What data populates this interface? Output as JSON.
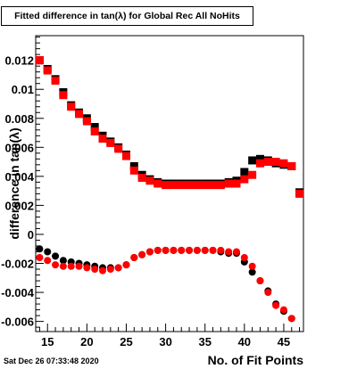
{
  "header": {
    "title": "Fitted difference in tan(λ) for Global Rec All NoHits"
  },
  "footer": {
    "timestamp": "Sat Dec 26 07:33:48 2020",
    "xlabel": "No. of Fit Points"
  },
  "chart_data": {
    "type": "scatter",
    "title": "Fitted difference in tan(λ) for Global Rec All NoHits",
    "xlabel": "No. of Fit Points",
    "ylabel": "difference in tan(λ)",
    "xlim": [
      13.5,
      47.5
    ],
    "ylim": [
      -0.0067,
      0.0137
    ],
    "x_ticks": [
      15,
      20,
      25,
      30,
      35,
      40,
      45
    ],
    "x_tick_labels": [
      "15",
      "20",
      "25",
      "30",
      "35",
      "40",
      "45"
    ],
    "y_ticks": [
      -0.006,
      -0.004,
      -0.002,
      0,
      0.002,
      0.004,
      0.006,
      0.008,
      0.01,
      0.012
    ],
    "y_tick_labels": [
      "-0.006",
      "-0.004",
      "-0.002",
      "0",
      "0.002",
      "0.004",
      "0.006",
      "0.008",
      "0.01",
      "0.012"
    ],
    "series": [
      {
        "color": "#000000",
        "marker": "square",
        "x": [
          14,
          15,
          16,
          17,
          18,
          19,
          20,
          21,
          22,
          23,
          24,
          25,
          26,
          27,
          28,
          29,
          30,
          31,
          32,
          33,
          34,
          35,
          36,
          37,
          38,
          39,
          40,
          41,
          42,
          43,
          44,
          45,
          46,
          47
        ],
        "y": [
          0.012,
          0.0114,
          0.0107,
          0.0098,
          0.0089,
          0.0084,
          0.008,
          0.0074,
          0.0068,
          0.0064,
          0.006,
          0.0055,
          0.0047,
          0.0041,
          0.0038,
          0.0036,
          0.0035,
          0.0035,
          0.0035,
          0.0035,
          0.0035,
          0.0035,
          0.0035,
          0.0035,
          0.0036,
          0.0037,
          0.0043,
          0.0051,
          0.0052,
          0.0051,
          0.0049,
          0.0048,
          0.0047,
          0.0029
        ]
      },
      {
        "color": "#ff0000",
        "marker": "square",
        "x": [
          14,
          15,
          16,
          17,
          18,
          19,
          20,
          21,
          22,
          23,
          24,
          25,
          26,
          27,
          28,
          29,
          30,
          31,
          32,
          33,
          34,
          35,
          36,
          37,
          38,
          39,
          40,
          41,
          42,
          43,
          44,
          45,
          46,
          47
        ],
        "y": [
          0.012,
          0.0113,
          0.0106,
          0.0096,
          0.0088,
          0.0083,
          0.0078,
          0.0071,
          0.0066,
          0.0063,
          0.0059,
          0.0054,
          0.0044,
          0.0039,
          0.0037,
          0.0035,
          0.0034,
          0.0034,
          0.0034,
          0.0034,
          0.0034,
          0.0034,
          0.0034,
          0.0034,
          0.0035,
          0.0035,
          0.0038,
          0.0041,
          0.0049,
          0.005,
          0.005,
          0.0049,
          0.0047,
          0.0028
        ]
      },
      {
        "color": "#000000",
        "marker": "circle",
        "x": [
          14,
          15,
          16,
          17,
          18,
          19,
          20,
          21,
          22,
          23,
          24,
          25,
          26,
          27,
          28,
          29,
          30,
          31,
          32,
          33,
          34,
          35,
          36,
          37,
          38,
          39,
          40,
          41,
          42,
          43,
          44,
          45,
          46
        ],
        "y": [
          -0.001,
          -0.0012,
          -0.0015,
          -0.0018,
          -0.0019,
          -0.002,
          -0.0021,
          -0.0022,
          -0.0023,
          -0.0023,
          -0.0023,
          -0.0021,
          -0.0016,
          -0.0014,
          -0.0012,
          -0.0011,
          -0.0011,
          -0.0011,
          -0.0011,
          -0.0011,
          -0.0011,
          -0.0011,
          -0.0011,
          -0.0012,
          -0.0013,
          -0.0013,
          -0.0019,
          -0.0026,
          -0.0032,
          -0.0039,
          -0.0048,
          -0.0053,
          -0.0058
        ]
      },
      {
        "color": "#ff0000",
        "marker": "circle",
        "x": [
          14,
          15,
          16,
          17,
          18,
          19,
          20,
          21,
          22,
          23,
          24,
          25,
          26,
          27,
          28,
          29,
          30,
          31,
          32,
          33,
          34,
          35,
          36,
          37,
          38,
          39,
          40,
          41,
          42,
          43,
          44,
          45,
          46
        ],
        "y": [
          -0.0016,
          -0.0018,
          -0.0021,
          -0.0022,
          -0.0022,
          -0.0022,
          -0.0023,
          -0.0024,
          -0.0025,
          -0.0024,
          -0.0023,
          -0.0021,
          -0.0016,
          -0.0014,
          -0.0012,
          -0.0011,
          -0.0011,
          -0.0011,
          -0.0011,
          -0.0011,
          -0.0011,
          -0.0011,
          -0.0011,
          -0.0011,
          -0.0012,
          -0.0012,
          -0.0016,
          -0.0022,
          -0.0032,
          -0.004,
          -0.0049,
          -0.0052,
          -0.0058
        ]
      }
    ]
  }
}
